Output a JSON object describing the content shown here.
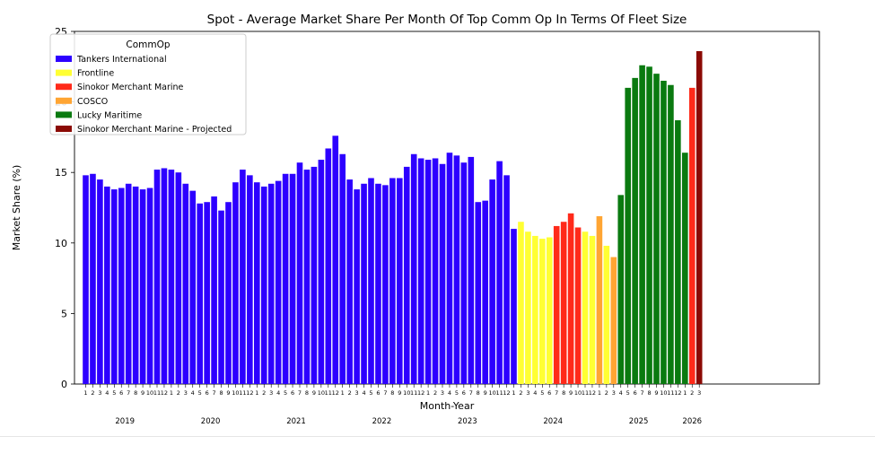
{
  "chart_data": {
    "type": "bar",
    "title": "Spot - Average Market Share Per Month Of Top Comm Op In Terms Of Fleet Size",
    "xlabel": "Month-Year",
    "ylabel": "Market Share (%)",
    "ylim": [
      0,
      25
    ],
    "yticks": [
      0,
      5,
      10,
      15,
      20,
      25
    ],
    "grid": false,
    "legend_position": "top-left",
    "legend_title": "CommOp",
    "series": [
      {
        "name": "Tankers International",
        "color": "#2d00ff"
      },
      {
        "name": "Frontline",
        "color": "#ffff33"
      },
      {
        "name": "Sinokor Merchant Marine",
        "color": "#ff2a1a"
      },
      {
        "name": "COSCO",
        "color": "#ffa533"
      },
      {
        "name": "Lucky Maritime",
        "color": "#0a7a10"
      },
      {
        "name": "Sinokor Merchant Marine - Projected",
        "color": "#8b0a05"
      }
    ],
    "years": [
      "2019",
      "2020",
      "2021",
      "2022",
      "2023",
      "2024",
      "2025",
      "2026"
    ],
    "bars": [
      {
        "year": "2019",
        "month": "1",
        "series": 0,
        "value": 14.8
      },
      {
        "year": "2019",
        "month": "2",
        "series": 0,
        "value": 14.9
      },
      {
        "year": "2019",
        "month": "3",
        "series": 0,
        "value": 14.5
      },
      {
        "year": "2019",
        "month": "4",
        "series": 0,
        "value": 14.0
      },
      {
        "year": "2019",
        "month": "5",
        "series": 0,
        "value": 13.8
      },
      {
        "year": "2019",
        "month": "6",
        "series": 0,
        "value": 13.9
      },
      {
        "year": "2019",
        "month": "7",
        "series": 0,
        "value": 14.2
      },
      {
        "year": "2019",
        "month": "8",
        "series": 0,
        "value": 14.0
      },
      {
        "year": "2019",
        "month": "9",
        "series": 0,
        "value": 13.8
      },
      {
        "year": "2019",
        "month": "10",
        "series": 0,
        "value": 13.9
      },
      {
        "year": "2019",
        "month": "11",
        "series": 0,
        "value": 15.2
      },
      {
        "year": "2019",
        "month": "12",
        "series": 0,
        "value": 15.3
      },
      {
        "year": "2020",
        "month": "1",
        "series": 0,
        "value": 15.2
      },
      {
        "year": "2020",
        "month": "2",
        "series": 0,
        "value": 15.0
      },
      {
        "year": "2020",
        "month": "3",
        "series": 0,
        "value": 14.2
      },
      {
        "year": "2020",
        "month": "4",
        "series": 0,
        "value": 13.7
      },
      {
        "year": "2020",
        "month": "5",
        "series": 0,
        "value": 12.8
      },
      {
        "year": "2020",
        "month": "6",
        "series": 0,
        "value": 12.9
      },
      {
        "year": "2020",
        "month": "7",
        "series": 0,
        "value": 13.3
      },
      {
        "year": "2020",
        "month": "8",
        "series": 0,
        "value": 12.3
      },
      {
        "year": "2020",
        "month": "9",
        "series": 0,
        "value": 12.9
      },
      {
        "year": "2020",
        "month": "10",
        "series": 0,
        "value": 14.3
      },
      {
        "year": "2020",
        "month": "11",
        "series": 0,
        "value": 15.2
      },
      {
        "year": "2020",
        "month": "12",
        "series": 0,
        "value": 14.8
      },
      {
        "year": "2021",
        "month": "1",
        "series": 0,
        "value": 14.3
      },
      {
        "year": "2021",
        "month": "2",
        "series": 0,
        "value": 14.0
      },
      {
        "year": "2021",
        "month": "3",
        "series": 0,
        "value": 14.2
      },
      {
        "year": "2021",
        "month": "4",
        "series": 0,
        "value": 14.4
      },
      {
        "year": "2021",
        "month": "5",
        "series": 0,
        "value": 14.9
      },
      {
        "year": "2021",
        "month": "6",
        "series": 0,
        "value": 14.9
      },
      {
        "year": "2021",
        "month": "7",
        "series": 0,
        "value": 15.7
      },
      {
        "year": "2021",
        "month": "8",
        "series": 0,
        "value": 15.2
      },
      {
        "year": "2021",
        "month": "9",
        "series": 0,
        "value": 15.4
      },
      {
        "year": "2021",
        "month": "10",
        "series": 0,
        "value": 15.9
      },
      {
        "year": "2021",
        "month": "11",
        "series": 0,
        "value": 16.7
      },
      {
        "year": "2021",
        "month": "12",
        "series": 0,
        "value": 17.6
      },
      {
        "year": "2022",
        "month": "1",
        "series": 0,
        "value": 16.3
      },
      {
        "year": "2022",
        "month": "2",
        "series": 0,
        "value": 14.5
      },
      {
        "year": "2022",
        "month": "3",
        "series": 0,
        "value": 13.8
      },
      {
        "year": "2022",
        "month": "4",
        "series": 0,
        "value": 14.2
      },
      {
        "year": "2022",
        "month": "5",
        "series": 0,
        "value": 14.6
      },
      {
        "year": "2022",
        "month": "6",
        "series": 0,
        "value": 14.2
      },
      {
        "year": "2022",
        "month": "7",
        "series": 0,
        "value": 14.1
      },
      {
        "year": "2022",
        "month": "8",
        "series": 0,
        "value": 14.6
      },
      {
        "year": "2022",
        "month": "9",
        "series": 0,
        "value": 14.6
      },
      {
        "year": "2022",
        "month": "10",
        "series": 0,
        "value": 15.4
      },
      {
        "year": "2022",
        "month": "11",
        "series": 0,
        "value": 16.3
      },
      {
        "year": "2022",
        "month": "12",
        "series": 0,
        "value": 16.0
      },
      {
        "year": "2023",
        "month": "1",
        "series": 0,
        "value": 15.9
      },
      {
        "year": "2023",
        "month": "2",
        "series": 0,
        "value": 16.0
      },
      {
        "year": "2023",
        "month": "3",
        "series": 0,
        "value": 15.6
      },
      {
        "year": "2023",
        "month": "4",
        "series": 0,
        "value": 16.4
      },
      {
        "year": "2023",
        "month": "5",
        "series": 0,
        "value": 16.2
      },
      {
        "year": "2023",
        "month": "6",
        "series": 0,
        "value": 15.7
      },
      {
        "year": "2023",
        "month": "7",
        "series": 0,
        "value": 16.1
      },
      {
        "year": "2023",
        "month": "8",
        "series": 0,
        "value": 12.9
      },
      {
        "year": "2023",
        "month": "9",
        "series": 0,
        "value": 13.0
      },
      {
        "year": "2023",
        "month": "10",
        "series": 0,
        "value": 14.5
      },
      {
        "year": "2023",
        "month": "11",
        "series": 0,
        "value": 15.8
      },
      {
        "year": "2023",
        "month": "12",
        "series": 0,
        "value": 14.8
      },
      {
        "year": "2024",
        "month": "1",
        "series": 0,
        "value": 11.0
      },
      {
        "year": "2024",
        "month": "2",
        "series": 1,
        "value": 11.5
      },
      {
        "year": "2024",
        "month": "3",
        "series": 1,
        "value": 10.8
      },
      {
        "year": "2024",
        "month": "4",
        "series": 1,
        "value": 10.5
      },
      {
        "year": "2024",
        "month": "5",
        "series": 1,
        "value": 10.3
      },
      {
        "year": "2024",
        "month": "6",
        "series": 1,
        "value": 10.4
      },
      {
        "year": "2024",
        "month": "7",
        "series": 2,
        "value": 11.2
      },
      {
        "year": "2024",
        "month": "8",
        "series": 2,
        "value": 11.5
      },
      {
        "year": "2024",
        "month": "9",
        "series": 2,
        "value": 12.1
      },
      {
        "year": "2024",
        "month": "10",
        "series": 2,
        "value": 11.1
      },
      {
        "year": "2024",
        "month": "11",
        "series": 1,
        "value": 10.8
      },
      {
        "year": "2024",
        "month": "12",
        "series": 1,
        "value": 10.5
      },
      {
        "year": "2025",
        "month": "1",
        "series": 3,
        "value": 11.9
      },
      {
        "year": "2025",
        "month": "2",
        "series": 1,
        "value": 9.8
      },
      {
        "year": "2025",
        "month": "3",
        "series": 3,
        "value": 9.0
      },
      {
        "year": "2025",
        "month": "4",
        "series": 4,
        "value": 13.4
      },
      {
        "year": "2025",
        "month": "5",
        "series": 4,
        "value": 21.0
      },
      {
        "year": "2025",
        "month": "6",
        "series": 4,
        "value": 21.7
      },
      {
        "year": "2025",
        "month": "7",
        "series": 4,
        "value": 22.6
      },
      {
        "year": "2025",
        "month": "8",
        "series": 4,
        "value": 22.5
      },
      {
        "year": "2025",
        "month": "9",
        "series": 4,
        "value": 22.0
      },
      {
        "year": "2025",
        "month": "10",
        "series": 4,
        "value": 21.5
      },
      {
        "year": "2025",
        "month": "11",
        "series": 4,
        "value": 21.2
      },
      {
        "year": "2025",
        "month": "12",
        "series": 4,
        "value": 18.7
      },
      {
        "year": "2026",
        "month": "1",
        "series": 4,
        "value": 16.4
      },
      {
        "year": "2026",
        "month": "2",
        "series": 2,
        "value": 21.0
      },
      {
        "year": "2026",
        "month": "3",
        "series": 5,
        "value": 23.6
      }
    ]
  }
}
